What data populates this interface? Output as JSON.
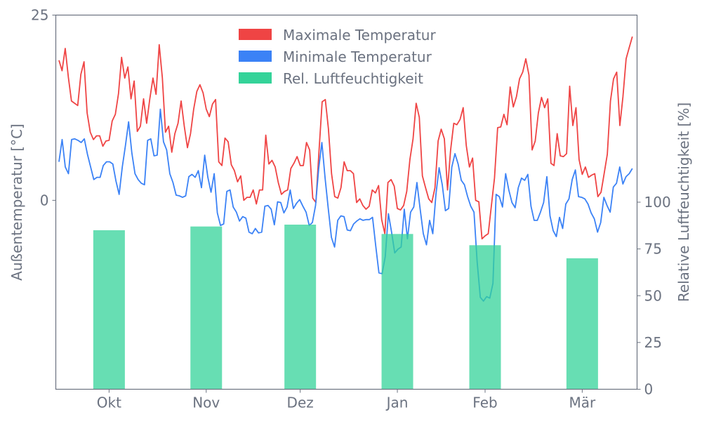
{
  "chart_data": {
    "type": "line+bar",
    "title": "",
    "xlabel": "",
    "ylabel_left": "Außentemperatur [°C]",
    "ylabel_right": "Relative Luftfeuchtigkeit [%]",
    "ylim_left": [
      -25.5,
      25
    ],
    "ylim_right": [
      0,
      200
    ],
    "xlim_days": [
      -1,
      184.5
    ],
    "series_day_range": [
      0,
      183
    ],
    "left_ticks": [
      {
        "value": 25,
        "label": "25"
      },
      {
        "value": 0,
        "label": "0"
      }
    ],
    "right_ticks": [
      {
        "value": 0,
        "label": "0"
      },
      {
        "value": 25,
        "label": "25"
      },
      {
        "value": 50,
        "label": "50"
      },
      {
        "value": 75,
        "label": "75"
      },
      {
        "value": 100,
        "label": "100"
      }
    ],
    "x_ticks": [
      {
        "day": 16,
        "label": "Okt"
      },
      {
        "day": 47,
        "label": "Nov"
      },
      {
        "day": 77,
        "label": "Dez"
      },
      {
        "day": 108,
        "label": "Jan"
      },
      {
        "day": 136,
        "label": "Feb"
      },
      {
        "day": 167,
        "label": "Mär"
      }
    ],
    "grid": false,
    "legend_placement": "top-center",
    "legend": [
      "Maximale Temperatur",
      "Minimale Temperatur",
      "Rel. Luftfeuchtigkeit"
    ],
    "colors": {
      "max": "#ef4444",
      "min": "#3b82f6",
      "humidity": "#34d399",
      "axis": "#6b7280"
    },
    "series": [
      {
        "name": "Maximale Temperatur",
        "axis": "left",
        "values": [
          18.9,
          17.5,
          20.5,
          16.6,
          13.4,
          13.1,
          12.8,
          17.0,
          18.7,
          11.8,
          9.2,
          8.2,
          8.7,
          8.7,
          7.3,
          8.0,
          8.1,
          10.7,
          11.6,
          14.4,
          19.3,
          16.5,
          18.0,
          13.7,
          16.1,
          9.3,
          10.0,
          13.7,
          10.4,
          13.7,
          16.5,
          14.3,
          21.0,
          16.5,
          9.2,
          10.0,
          6.5,
          9.0,
          10.4,
          13.4,
          10.0,
          7.1,
          9.0,
          12.3,
          14.7,
          15.6,
          14.5,
          12.3,
          11.3,
          13.0,
          13.6,
          5.2,
          4.7,
          8.4,
          7.9,
          4.8,
          4.0,
          2.5,
          3.3,
          0.0,
          0.4,
          0.4,
          1.4,
          -0.5,
          1.4,
          1.4,
          8.8,
          4.9,
          5.4,
          4.5,
          2.4,
          0.8,
          1.2,
          1.4,
          4.3,
          5.0,
          5.9,
          4.7,
          4.7,
          7.8,
          6.8,
          0.3,
          -0.3,
          6.6,
          13.3,
          13.6,
          9.7,
          3.6,
          0.5,
          0.3,
          1.7,
          5.2,
          4.0,
          4.0,
          3.6,
          -0.3,
          0.2,
          -0.7,
          -1.2,
          -0.8,
          1.4,
          1.0,
          2.0,
          -2.6,
          -4.5,
          2.4,
          2.8,
          1.9,
          -1.1,
          -1.3,
          -0.7,
          1.2,
          5.5,
          8.3,
          13.1,
          11.2,
          3.3,
          1.7,
          0.2,
          -0.3,
          1.7,
          8.0,
          9.6,
          8.3,
          1.4,
          6.8,
          10.4,
          10.2,
          10.9,
          12.5,
          7.4,
          4.5,
          5.7,
          0.0,
          -0.2,
          -5.2,
          -4.8,
          -4.5,
          -0.8,
          3.0,
          9.8,
          9.9,
          11.6,
          10.2,
          15.3,
          12.6,
          14.0,
          16.4,
          17.3,
          19.1,
          16.9,
          6.8,
          8.0,
          11.8,
          13.9,
          12.5,
          13.7,
          5.0,
          4.7,
          9.0,
          6.0,
          5.9,
          6.3,
          15.4,
          10.1,
          12.5,
          5.5,
          3.5,
          4.5,
          3.1,
          3.4,
          3.6,
          0.5,
          1.1,
          3.6,
          6.2,
          13.4,
          16.4,
          17.3,
          10.1,
          14.0,
          19.1,
          20.6,
          22.1
        ]
      },
      {
        "name": "Minimale Temperatur",
        "axis": "left",
        "values": [
          5.2,
          8.2,
          4.5,
          3.6,
          8.2,
          8.3,
          8.1,
          7.8,
          8.3,
          6.2,
          4.5,
          2.8,
          3.1,
          3.1,
          4.7,
          5.2,
          5.2,
          4.9,
          2.6,
          0.8,
          4.5,
          7.4,
          10.6,
          6.4,
          3.6,
          2.8,
          2.3,
          2.1,
          8.1,
          8.3,
          6.0,
          6.1,
          12.3,
          7.9,
          6.8,
          3.6,
          2.4,
          0.7,
          0.6,
          0.4,
          0.6,
          3.2,
          3.5,
          3.1,
          4.0,
          1.7,
          6.1,
          3.1,
          1.1,
          3.6,
          -1.7,
          -3.4,
          -3.2,
          1.2,
          1.4,
          -0.9,
          -1.6,
          -2.8,
          -2.2,
          -2.4,
          -4.3,
          -4.5,
          -3.8,
          -4.4,
          -4.3,
          -0.8,
          -0.7,
          -1.2,
          -3.3,
          -0.2,
          -0.3,
          -1.7,
          -0.9,
          1.4,
          -1.1,
          -0.4,
          0.1,
          -0.8,
          -1.6,
          -3.4,
          -3.0,
          -0.7,
          4.3,
          7.8,
          3.0,
          -1.1,
          -5.0,
          -6.3,
          -2.7,
          -2.1,
          -2.2,
          -4.0,
          -4.1,
          -3.2,
          -2.8,
          -2.5,
          -2.7,
          -2.6,
          -2.6,
          -2.3,
          -6.2,
          -9.8,
          -9.9,
          -7.6,
          -1.8,
          -4.3,
          -7.1,
          -6.6,
          -6.3,
          -1.2,
          -5.2,
          -1.6,
          -0.9,
          2.4,
          -1.1,
          -4.5,
          -6.0,
          -2.7,
          -4.5,
          0.8,
          4.4,
          2.1,
          -1.4,
          -1.1,
          4.5,
          6.3,
          4.9,
          2.7,
          2.1,
          0.5,
          -0.8,
          -1.6,
          -8.3,
          -13.1,
          -13.6,
          -13.0,
          -13.2,
          -11.2,
          0.8,
          0.5,
          -0.9,
          3.6,
          1.4,
          -0.3,
          -1.0,
          1.7,
          3.0,
          2.7,
          3.5,
          -0.8,
          -2.7,
          -2.7,
          -1.6,
          -0.3,
          3.2,
          -2.1,
          -4.1,
          -4.9,
          -2.3,
          -3.8,
          -0.5,
          0.2,
          2.8,
          4.1,
          0.5,
          0.4,
          0.2,
          -0.5,
          -1.7,
          -2.5,
          -4.3,
          -3.0,
          0.4,
          -0.7,
          -1.6,
          1.8,
          2.3,
          4.5,
          2.2,
          3.2,
          3.6,
          4.3
        ]
      },
      {
        "name": "Rel. Luftfeuchtigkeit",
        "axis": "right",
        "type": "bar",
        "categories": [
          "Okt",
          "Nov",
          "Dez",
          "Jan",
          "Feb",
          "Mär"
        ],
        "values": [
          85,
          87,
          88,
          83,
          77,
          70
        ]
      }
    ]
  }
}
